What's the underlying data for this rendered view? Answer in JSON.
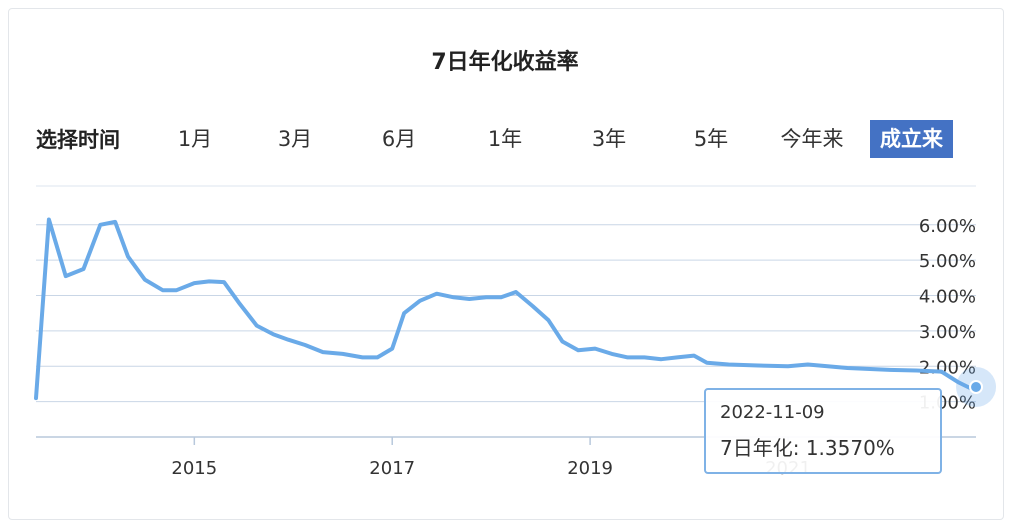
{
  "title": "7日年化收益率",
  "range": {
    "label": "选择时间",
    "options": [
      "1月",
      "3月",
      "6月",
      "1年",
      "3年",
      "5年",
      "今年来",
      "成立来"
    ],
    "selected": "成立来"
  },
  "tooltip": {
    "date": "2022-11-09",
    "value_text": "7日年化: 1.3570%"
  },
  "colors": {
    "line": "#6aaae8",
    "grid": "#c9d6e6",
    "accent": "#4472c4",
    "tooltip_border": "#7fb2e6"
  },
  "chart_data": {
    "type": "line",
    "title": "7日年化收益率",
    "xlabel": "",
    "ylabel": "",
    "y_ticks": [
      "1.00%",
      "2.00%",
      "3.00%",
      "4.00%",
      "5.00%",
      "6.00%"
    ],
    "x_ticks": [
      "2015",
      "2017",
      "2019",
      "2021"
    ],
    "ylim": [
      0.0,
      6.7
    ],
    "xlim": [
      2013.4,
      2022.9
    ],
    "grid": true,
    "series": [
      {
        "x": [
          2013.4,
          2013.53,
          2013.7,
          2013.88,
          2014.05,
          2014.2,
          2014.33,
          2014.5,
          2014.68,
          2014.82,
          2015.0,
          2015.15,
          2015.3,
          2015.45,
          2015.63,
          2015.8,
          2015.95,
          2016.12,
          2016.3,
          2016.5,
          2016.7,
          2016.85,
          2017.0,
          2017.12,
          2017.28,
          2017.45,
          2017.62,
          2017.78,
          2017.95,
          2018.1,
          2018.25,
          2018.42,
          2018.58,
          2018.72,
          2018.88,
          2019.05,
          2019.22,
          2019.38,
          2019.55,
          2019.72,
          2019.88,
          2020.05,
          2020.18,
          2020.4,
          2020.7,
          2021.0,
          2021.2,
          2021.6,
          2022.0,
          2022.3,
          2022.55,
          2022.72,
          2022.86
        ],
        "y": [
          1.1,
          6.15,
          4.55,
          4.75,
          6.0,
          6.08,
          5.1,
          4.45,
          4.15,
          4.15,
          4.35,
          4.4,
          4.38,
          3.8,
          3.15,
          2.9,
          2.75,
          2.6,
          2.4,
          2.35,
          2.25,
          2.25,
          2.5,
          3.5,
          3.85,
          4.05,
          3.95,
          3.9,
          3.95,
          3.95,
          4.1,
          3.7,
          3.3,
          2.7,
          2.45,
          2.5,
          2.35,
          2.25,
          2.25,
          2.2,
          2.25,
          2.3,
          2.1,
          2.05,
          2.02,
          2.0,
          2.05,
          1.95,
          1.9,
          1.88,
          1.85,
          1.55,
          1.357
        ]
      }
    ]
  }
}
